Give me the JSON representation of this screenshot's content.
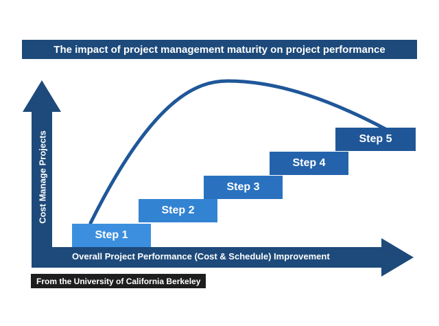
{
  "title": "The impact of project management maturity on project performance",
  "y_axis_label": "Cost Manage Projects",
  "x_axis_label": "Overall Project Performance (Cost & Schedule) Improvement",
  "steps": [
    {
      "label": "Step 1"
    },
    {
      "label": "Step 2"
    },
    {
      "label": "Step 3"
    },
    {
      "label": "Step 4"
    },
    {
      "label": "Step 5"
    }
  ],
  "source": "From the University of California Berkeley",
  "colors": {
    "axis": "#1d4a7a",
    "curve": "#1f5799",
    "source_bg": "#1e1e1e",
    "step_1": "#3c8fde",
    "step_2": "#3383d3",
    "step_3": "#2a72c0",
    "step_4": "#2463ab",
    "step_5": "#1f5698"
  },
  "icons": [
    "up-arrow-icon",
    "right-arrow-icon"
  ]
}
